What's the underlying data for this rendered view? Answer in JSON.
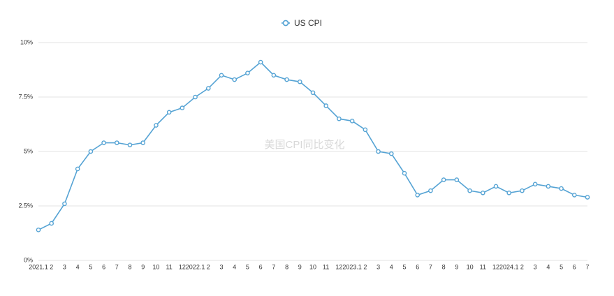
{
  "chart_data": {
    "type": "line",
    "title": null,
    "annotation": "美国CPI同比变化",
    "categories": [
      "2021.1",
      "2",
      "3",
      "4",
      "5",
      "6",
      "7",
      "8",
      "9",
      "10",
      "11",
      "12",
      "2022.1",
      "2",
      "3",
      "4",
      "5",
      "6",
      "7",
      "8",
      "9",
      "10",
      "11",
      "12",
      "2023.1",
      "2",
      "3",
      "4",
      "5",
      "6",
      "7",
      "8",
      "9",
      "10",
      "11",
      "12",
      "2024.1",
      "2",
      "3",
      "4",
      "5",
      "6",
      "7"
    ],
    "series": [
      {
        "name": "US CPI",
        "color": "#55a3d4",
        "values": [
          1.4,
          1.7,
          2.6,
          4.2,
          5.0,
          5.4,
          5.4,
          5.3,
          5.4,
          6.2,
          6.8,
          7.0,
          7.5,
          7.9,
          8.5,
          8.3,
          8.6,
          9.1,
          8.5,
          8.3,
          8.2,
          7.7,
          7.1,
          6.5,
          6.4,
          6.0,
          5.0,
          4.9,
          4.0,
          3.0,
          3.2,
          3.7,
          3.7,
          3.2,
          3.1,
          3.4,
          3.1,
          3.2,
          3.5,
          3.4,
          3.3,
          3.0,
          2.9
        ]
      }
    ],
    "ylim": [
      0,
      10
    ],
    "yticks": [
      {
        "value": 0,
        "label": "0%"
      },
      {
        "value": 2.5,
        "label": "2.5%"
      },
      {
        "value": 5,
        "label": "5%"
      },
      {
        "value": 7.5,
        "label": "7.5%"
      },
      {
        "value": 10,
        "label": "10%"
      }
    ],
    "grid": true,
    "legend": "top"
  }
}
